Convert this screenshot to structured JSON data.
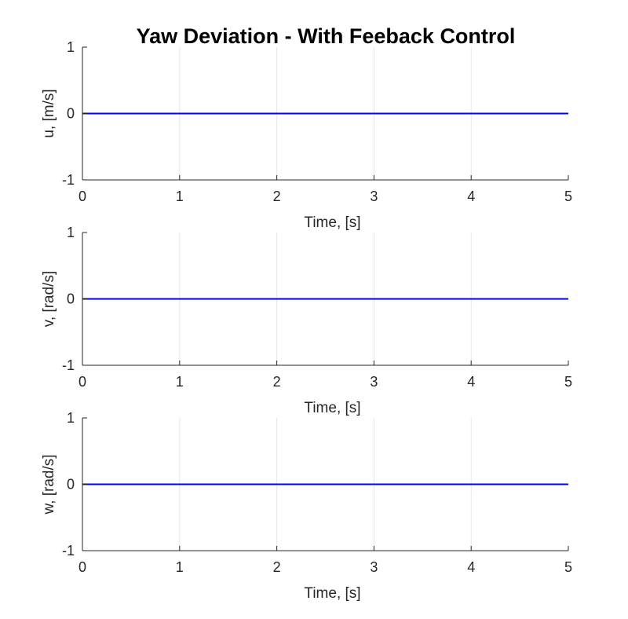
{
  "figure": {
    "title": "Yaw Deviation - With Feeback Control"
  },
  "colors": {
    "line": "#0000ff",
    "axis": "#262626",
    "grid": "#e6e6e6"
  },
  "chart_data": [
    {
      "type": "line",
      "title": "Yaw Deviation - With Feeback Control",
      "xlabel": "Time, [s]",
      "ylabel": "u, [m/s]",
      "xlim": [
        0,
        5
      ],
      "ylim": [
        -1,
        1
      ],
      "xticks": [
        "0",
        "1",
        "2",
        "3",
        "4",
        "5"
      ],
      "yticks": [
        "-1",
        "0",
        "1"
      ],
      "grid": true,
      "series": [
        {
          "x": [
            0,
            5
          ],
          "y": [
            0,
            0
          ]
        }
      ]
    },
    {
      "type": "line",
      "title": "",
      "xlabel": "Time, [s]",
      "ylabel": "v, [rad/s]",
      "xlim": [
        0,
        5
      ],
      "ylim": [
        -1,
        1
      ],
      "xticks": [
        "0",
        "1",
        "2",
        "3",
        "4",
        "5"
      ],
      "yticks": [
        "-1",
        "0",
        "1"
      ],
      "grid": true,
      "series": [
        {
          "x": [
            0,
            5
          ],
          "y": [
            0,
            0
          ]
        }
      ]
    },
    {
      "type": "line",
      "title": "",
      "xlabel": "Time, [s]",
      "ylabel": "w, [rad/s]",
      "xlim": [
        0,
        5
      ],
      "ylim": [
        -1,
        1
      ],
      "xticks": [
        "0",
        "1",
        "2",
        "3",
        "4",
        "5"
      ],
      "yticks": [
        "-1",
        "0",
        "1"
      ],
      "grid": true,
      "series": [
        {
          "x": [
            0,
            5
          ],
          "y": [
            0,
            0
          ]
        }
      ]
    }
  ]
}
